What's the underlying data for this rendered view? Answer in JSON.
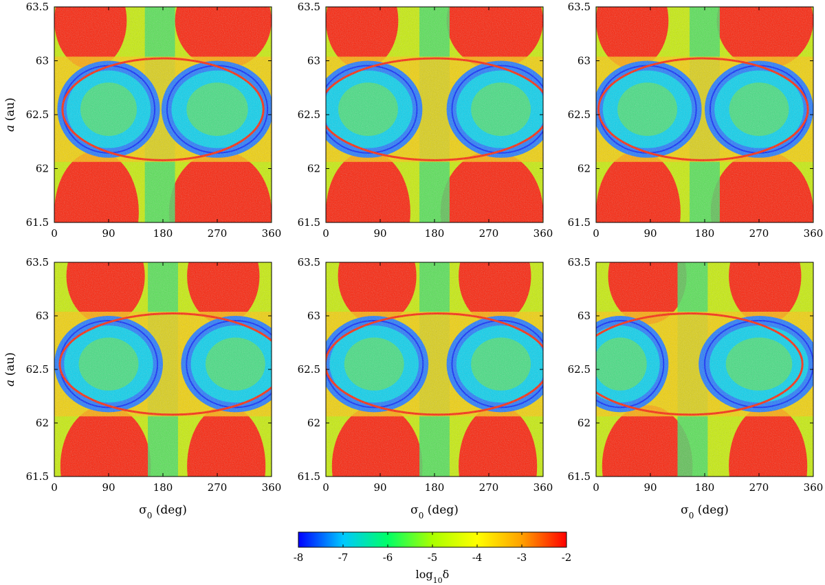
{
  "figure": {
    "colorbar": {
      "label_base": "log",
      "label_sub": "10",
      "label_sym": "δ",
      "range": [
        -8,
        -2
      ],
      "ticks": [
        "-8",
        "-7",
        "-6",
        "-5",
        "-4",
        "-3",
        "-2"
      ],
      "colors": [
        "#0000ff",
        "#00c8ff",
        "#00ff66",
        "#aaff00",
        "#ffff00",
        "#ffa000",
        "#ff0000"
      ]
    },
    "ylabel_italic": "a",
    "ylabel_unit": " (au)",
    "xlabel_sym": "σ",
    "xlabel_sub": "0",
    "xlabel_unit": " (deg)"
  },
  "chart_data": [
    {
      "type": "heatmap",
      "panel": "top-left",
      "xlim": [
        0,
        360
      ],
      "ylim": [
        61.5,
        63.5
      ],
      "xticks": [
        "0",
        "90",
        "180",
        "270",
        "360"
      ],
      "yticks": [
        "61.5",
        "62",
        "62.5",
        "63",
        "63.5"
      ],
      "colorscale": "log10 δ",
      "island_centers_deg": [
        90,
        270
      ],
      "saddle_deg": 175,
      "island_center_a": 62.55
    },
    {
      "type": "heatmap",
      "panel": "top-middle",
      "xlim": [
        0,
        360
      ],
      "ylim": [
        61.5,
        63.5
      ],
      "xticks": [
        "0",
        "90",
        "180",
        "270",
        "360"
      ],
      "yticks": [
        "61.5",
        "62",
        "62.5",
        "63",
        "63.5"
      ],
      "colorscale": "log10 δ",
      "island_centers_deg": [
        70,
        290
      ],
      "saddle_deg": 180,
      "island_center_a": 62.55
    },
    {
      "type": "heatmap",
      "panel": "top-right",
      "xlim": [
        0,
        360
      ],
      "ylim": [
        61.5,
        63.5
      ],
      "xticks": [
        "0",
        "90",
        "180",
        "270",
        "360"
      ],
      "yticks": [
        "61.5",
        "62",
        "62.5",
        "63",
        "63.5"
      ],
      "colorscale": "log10 δ",
      "island_centers_deg": [
        85,
        270
      ],
      "saddle_deg": 180,
      "island_center_a": 62.55
    },
    {
      "type": "heatmap",
      "panel": "bottom-left",
      "xlim": [
        0,
        360
      ],
      "ylim": [
        61.5,
        63.5
      ],
      "xticks": [
        "0",
        "90",
        "180",
        "270",
        "360"
      ],
      "yticks": [
        "61.5",
        "62",
        "62.5",
        "63",
        "63.5"
      ],
      "colorscale": "log10 δ",
      "island_centers_deg": [
        90,
        300
      ],
      "saddle_deg": 180,
      "island_center_a": 62.55
    },
    {
      "type": "heatmap",
      "panel": "bottom-middle",
      "xlim": [
        0,
        360
      ],
      "ylim": [
        61.5,
        63.5
      ],
      "xticks": [
        "0",
        "90",
        "180",
        "270",
        "360"
      ],
      "yticks": [
        "61.5",
        "62",
        "62.5",
        "63",
        "63.5"
      ],
      "colorscale": "log10 δ",
      "island_centers_deg": [
        80,
        290
      ],
      "saddle_deg": 180,
      "island_center_a": 62.55
    },
    {
      "type": "heatmap",
      "panel": "bottom-right",
      "xlim": [
        0,
        360
      ],
      "ylim": [
        61.5,
        63.5
      ],
      "xticks": [
        "0",
        "90",
        "180",
        "270",
        "360"
      ],
      "yticks": [
        "61.5",
        "62",
        "62.5",
        "63",
        "63.5"
      ],
      "colorscale": "log10 δ",
      "island_centers_deg": [
        40,
        270
      ],
      "saddle_deg": 160,
      "island_center_a": 62.55
    }
  ]
}
